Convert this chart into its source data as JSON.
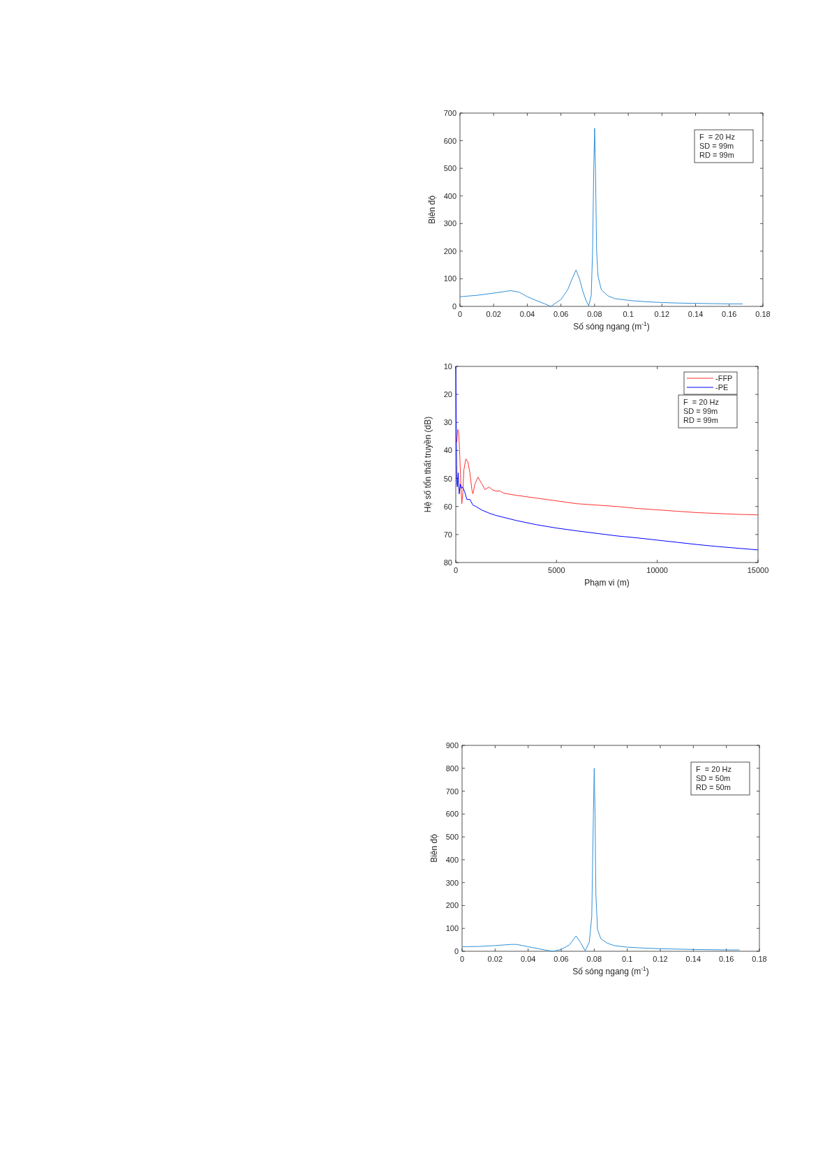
{
  "chart_data": [
    {
      "type": "line",
      "xlabel": "Số sóng ngang (m$^{-1}$)",
      "ylabel": "Biên độ",
      "annotations": [
        "F  = 20 Hz",
        "SD = 99m",
        "RD = 99m"
      ],
      "xlim": [
        0,
        0.18
      ],
      "ylim": [
        0,
        700
      ],
      "xticks": [
        0,
        0.02,
        0.04,
        0.06,
        0.08,
        0.1,
        0.12,
        0.14,
        0.16,
        0.18
      ],
      "yticks": [
        0,
        100,
        200,
        300,
        400,
        500,
        600,
        700
      ],
      "grid": false,
      "series": [
        {
          "color": "#2f8fd8",
          "x": [
            0,
            0.01,
            0.02,
            0.03,
            0.035,
            0.04,
            0.045,
            0.05,
            0.054,
            0.06,
            0.064,
            0.067,
            0.069,
            0.071,
            0.073,
            0.075,
            0.0765,
            0.078,
            0.0788,
            0.0795,
            0.08,
            0.0805,
            0.0812,
            0.082,
            0.084,
            0.088,
            0.092,
            0.1,
            0.11,
            0.12,
            0.13,
            0.14,
            0.15,
            0.16,
            0.168
          ],
          "values": [
            35,
            40,
            48,
            57,
            52,
            35,
            22,
            10,
            0,
            25,
            60,
            105,
            132,
            100,
            55,
            20,
            2,
            40,
            200,
            500,
            645,
            500,
            200,
            110,
            60,
            38,
            28,
            22,
            17,
            14,
            12,
            11,
            10,
            9,
            9
          ]
        }
      ]
    },
    {
      "type": "line",
      "xlabel": "Phạm vi (m)",
      "ylabel": "Hệ số tổn thất truyền (dB)",
      "annotations": [
        "F  = 20 Hz",
        "SD = 99m",
        "RD = 99m"
      ],
      "xlim": [
        0,
        15000
      ],
      "ylim": [
        80,
        10
      ],
      "xticks": [
        0,
        5000,
        10000,
        15000
      ],
      "yticks": [
        10,
        20,
        30,
        40,
        50,
        60,
        70,
        80
      ],
      "grid": false,
      "legend": "top right",
      "series": [
        {
          "name": "-FFP",
          "color": "#ff3030",
          "x": [
            50,
            100,
            150,
            200,
            250,
            300,
            350,
            400,
            500,
            600,
            700,
            800,
            850,
            950,
            1100,
            1300,
            1450,
            1650,
            1800,
            2000,
            2200,
            2400,
            3000,
            4000,
            5000,
            6000,
            7000,
            8000,
            9000,
            10000,
            11000,
            12000,
            13000,
            14000,
            15000
          ],
          "values": [
            37,
            32.5,
            34,
            42,
            52,
            59,
            55,
            47,
            43,
            44,
            48,
            54,
            55.5,
            52,
            49.5,
            52,
            54,
            53,
            54,
            54.5,
            54.5,
            55.3,
            56,
            57,
            58,
            59,
            59.5,
            60,
            60.7,
            61.2,
            61.7,
            62.2,
            62.5,
            62.8,
            63
          ]
        },
        {
          "name": "-PE",
          "color": "#0000ff",
          "x": [
            0,
            20,
            40,
            60,
            80,
            120,
            170,
            230,
            280,
            330,
            400,
            450,
            550,
            700,
            850,
            1000,
            1300,
            1700,
            2000,
            3000,
            4000,
            5000,
            6000,
            7000,
            8000,
            9000,
            10000,
            11000,
            12000,
            13000,
            14000,
            15000
          ],
          "values": [
            10,
            30,
            45,
            52,
            53,
            48,
            55.5,
            52,
            53.5,
            53,
            54,
            55,
            57.5,
            57.5,
            59.5,
            60,
            61.3,
            62.5,
            63.2,
            65,
            66.5,
            67.7,
            68.7,
            69.6,
            70.5,
            71.2,
            72,
            72.8,
            73.6,
            74.3,
            74.9,
            75.5
          ]
        }
      ]
    },
    {
      "type": "line",
      "xlabel": "Số sóng ngang (m$^{-1}$)",
      "ylabel": "Biên độ",
      "annotations": [
        "F  = 20 Hz",
        "SD = 50m",
        "RD = 50m"
      ],
      "xlim": [
        0,
        0.18
      ],
      "ylim": [
        0,
        900
      ],
      "xticks": [
        0,
        0.02,
        0.04,
        0.06,
        0.08,
        0.1,
        0.12,
        0.14,
        0.16,
        0.18
      ],
      "yticks": [
        0,
        100,
        200,
        300,
        400,
        500,
        600,
        700,
        800,
        900
      ],
      "grid": false,
      "series": [
        {
          "color": "#2f8fd8",
          "x": [
            0,
            0.01,
            0.02,
            0.03,
            0.033,
            0.04,
            0.05,
            0.055,
            0.06,
            0.065,
            0.069,
            0.072,
            0.0745,
            0.077,
            0.0785,
            0.0795,
            0.08,
            0.0805,
            0.081,
            0.082,
            0.084,
            0.088,
            0.092,
            0.1,
            0.11,
            0.12,
            0.14,
            0.16,
            0.168
          ],
          "values": [
            20,
            21,
            25,
            30,
            30,
            20,
            6,
            0,
            8,
            28,
            67,
            35,
            2,
            40,
            150,
            600,
            800,
            600,
            250,
            95,
            55,
            35,
            25,
            18,
            14,
            11,
            8,
            6,
            6
          ]
        }
      ]
    }
  ]
}
